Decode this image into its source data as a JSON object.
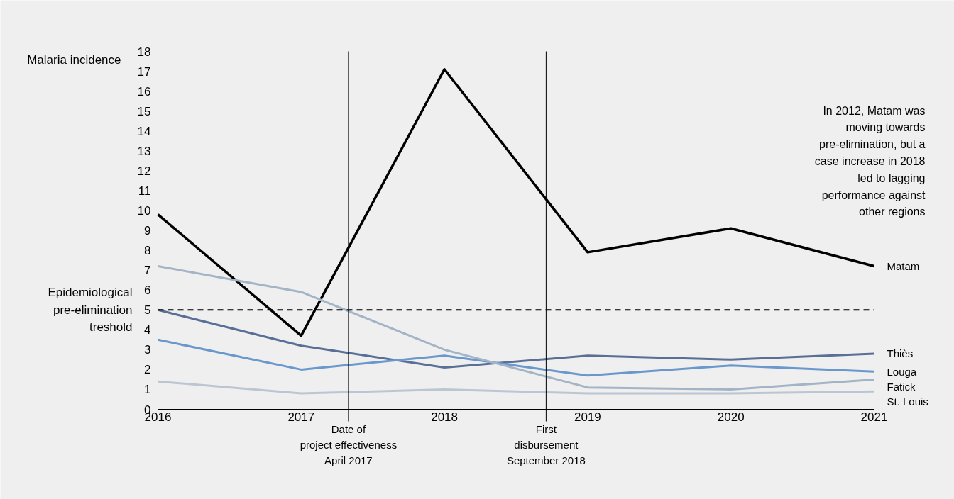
{
  "chart_data": {
    "type": "line",
    "ylabel": "Malaria incidence",
    "x": [
      2016,
      2017,
      2018,
      2019,
      2020,
      2021
    ],
    "xlim": [
      2016,
      2021
    ],
    "xticks": [
      2016,
      2017,
      2018,
      2019,
      2020,
      2021
    ],
    "ylim": [
      0,
      18
    ],
    "yticks": [
      0,
      1,
      2,
      3,
      4,
      5,
      6,
      7,
      8,
      9,
      10,
      11,
      12,
      13,
      14,
      15,
      16,
      17,
      18
    ],
    "series": [
      {
        "name": "Matam",
        "color": "#000000",
        "values": [
          9.8,
          3.7,
          17.1,
          7.9,
          9.1,
          7.2
        ]
      },
      {
        "name": "Thiès",
        "color": "#5a6f96",
        "values": [
          5.0,
          3.2,
          2.1,
          2.7,
          2.5,
          2.8
        ]
      },
      {
        "name": "Louga",
        "color": "#6a98cc",
        "values": [
          3.5,
          2.0,
          2.7,
          1.7,
          2.2,
          1.9
        ]
      },
      {
        "name": "Fatick",
        "color": "#a3b4c6",
        "values": [
          7.2,
          5.9,
          3.0,
          1.1,
          1.0,
          1.5
        ]
      },
      {
        "name": "St. Louis",
        "color": "#bcc6d2",
        "values": [
          1.4,
          0.8,
          1.0,
          0.8,
          0.8,
          0.9
        ]
      }
    ],
    "ref_lines": [
      {
        "axis": "y",
        "value": 5,
        "label": "Epidemiological\npre-elimination\ntreshold",
        "color": "#000000",
        "line_style": "dashed"
      },
      {
        "axis": "x",
        "value": 2017.33,
        "label": "Date of\nproject effectiveness\nApril 2017",
        "color": "#000000",
        "line_style": "solid"
      },
      {
        "axis": "x",
        "value": 2018.71,
        "label": "First\ndisbursement\nSeptember 2018",
        "color": "#000000",
        "line_style": "solid"
      }
    ],
    "annotations": [
      "In 2012, Matam was\nmoving towards\npre-elimination, but a\ncase increase in 2018\nled to lagging\nperformance against\nother regions"
    ],
    "legend": false,
    "grid": false,
    "marker": "none",
    "line_style": "solid"
  }
}
